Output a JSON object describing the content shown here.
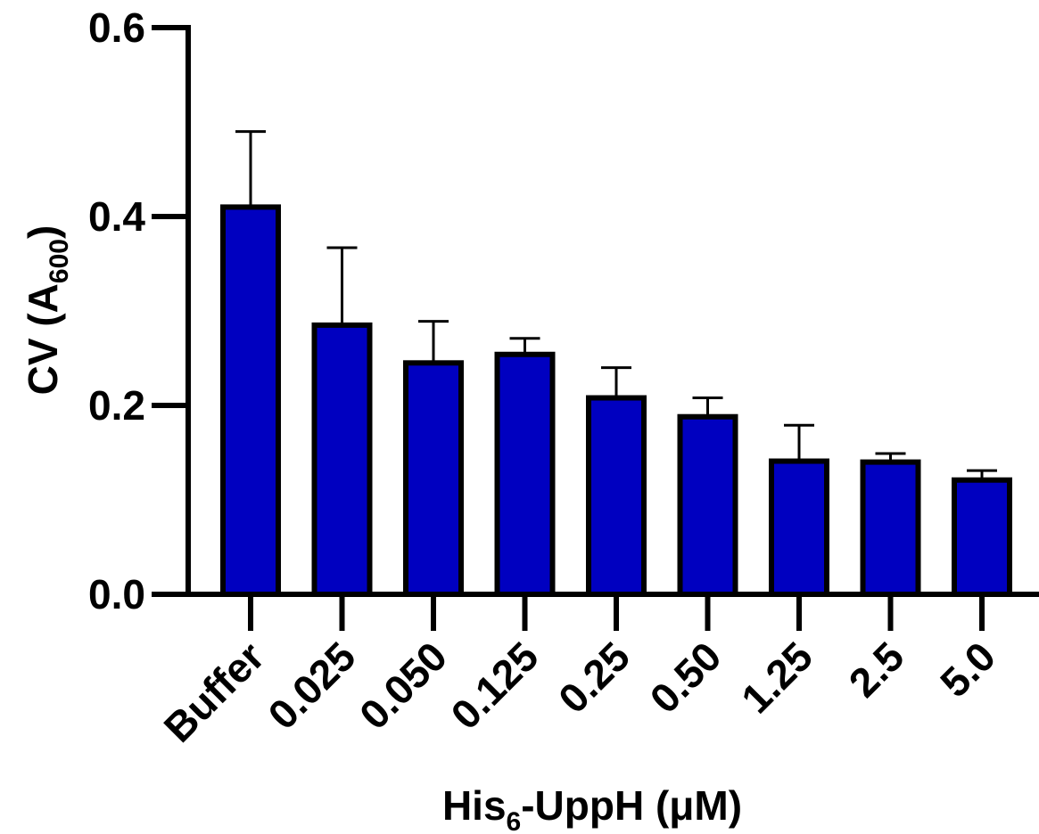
{
  "chart_data": {
    "type": "bar",
    "title": "",
    "xlabel": {
      "main": "His",
      "sub": "6",
      "rest": "-UppH (μM)"
    },
    "ylabel": {
      "main": "CV (A",
      "sub": "600",
      "rest": ")"
    },
    "categories": [
      "Buffer",
      "0.025",
      "0.050",
      "0.125",
      "0.25",
      "0.50",
      "1.25",
      "2.5",
      "5.0"
    ],
    "values": [
      0.41,
      0.285,
      0.245,
      0.254,
      0.208,
      0.188,
      0.141,
      0.14,
      0.121
    ],
    "error_upper": [
      0.08,
      0.082,
      0.044,
      0.017,
      0.032,
      0.02,
      0.038,
      0.009,
      0.01
    ],
    "ylim": [
      0,
      0.6
    ],
    "yticks": [
      "0.0",
      "0.2",
      "0.4",
      "0.6"
    ],
    "ytick_values": [
      0,
      0.2,
      0.4,
      0.6
    ],
    "bar_color": "#0000C0",
    "edge_color": "#000000",
    "grid": false,
    "legend": "none"
  }
}
